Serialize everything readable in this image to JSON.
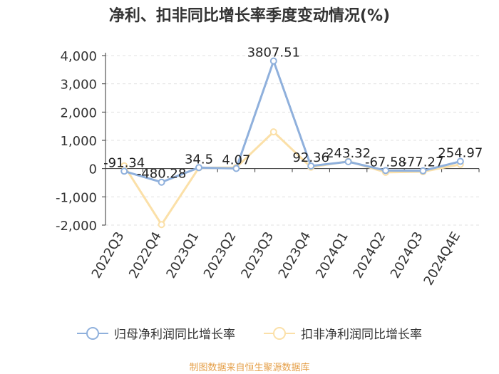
{
  "chart_data": {
    "type": "line",
    "title": "净利、扣非同比增长率季度变动情况(%)",
    "categories": [
      "2022Q3",
      "2022Q4",
      "2023Q1",
      "2023Q2",
      "2023Q3",
      "2023Q4",
      "2024Q1",
      "2024Q2",
      "2024Q3",
      "2024Q4E"
    ],
    "ylim": [
      -2000,
      4000
    ],
    "yticks": [
      "4,000",
      "3,000",
      "2,000",
      "1,000",
      "0",
      "-1,000",
      "-2,000"
    ],
    "series": [
      {
        "name": "归母净利润同比增长率",
        "color": "#8fb0dc",
        "values": [
          -91.34,
          -480.28,
          34.5,
          4.07,
          3807.51,
          92.36,
          243.32,
          -67.58,
          -77.27,
          254.97
        ],
        "labels": [
          "-91.34",
          "-480.28",
          "34.5",
          "4.07",
          "3807.51",
          "92.36",
          "243.32",
          "-67.58",
          "-77.27",
          "254.97"
        ]
      },
      {
        "name": "扣非净利润同比增长率",
        "color": "#fbe0a8",
        "values": [
          100,
          -1980,
          30,
          40,
          1300,
          50,
          260,
          -130,
          -110,
          150
        ]
      }
    ],
    "legend_position": "bottom",
    "grid": true
  },
  "source_text": "制图数据来自恒生聚源数据库"
}
